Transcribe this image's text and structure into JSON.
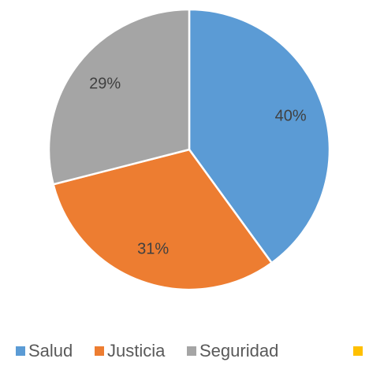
{
  "chart_data": {
    "type": "pie",
    "categories": [
      "Salud",
      "Justicia",
      "Seguridad"
    ],
    "values": [
      40,
      31,
      29
    ],
    "value_labels": [
      "40%",
      "31%",
      "29%"
    ],
    "colors": [
      "#5b9bd5",
      "#ed7d31",
      "#a5a5a5"
    ],
    "legend": "bottom"
  }
}
